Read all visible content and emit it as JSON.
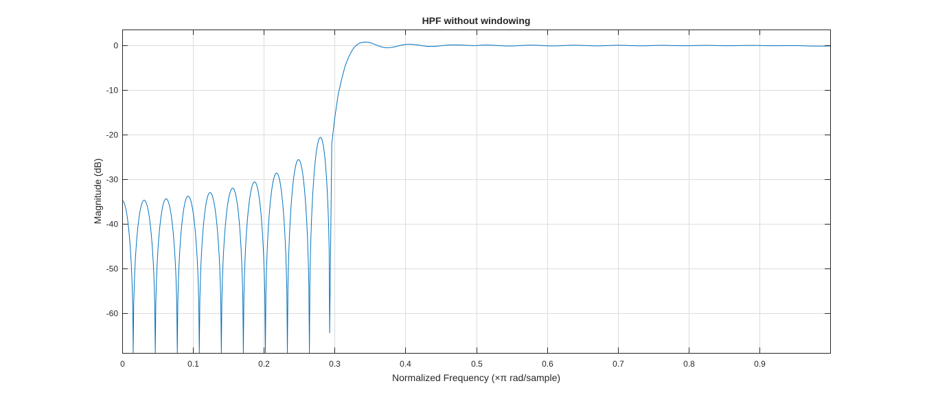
{
  "chart_data": {
    "type": "line",
    "title": "HPF without windowing",
    "xlabel": "Normalized Frequency (×π rad/sample)",
    "ylabel": "Magnitude (dB)",
    "xlim": [
      0,
      1
    ],
    "ylim": [
      -69,
      3.6
    ],
    "xticks": [
      0,
      0.1,
      0.2,
      0.3,
      0.4,
      0.5,
      0.6,
      0.7,
      0.8,
      0.9
    ],
    "xtick_labels": [
      "0",
      "0.1",
      "0.2",
      "0.3",
      "0.4",
      "0.5",
      "0.6",
      "0.7",
      "0.8",
      "0.9"
    ],
    "yticks": [
      0,
      -10,
      -20,
      -30,
      -40,
      -50,
      -60
    ],
    "ytick_labels": [
      "0",
      "-10",
      "-20",
      "-30",
      "-40",
      "-50",
      "-60"
    ],
    "grid": true,
    "series": [
      {
        "color": "#0072bd",
        "stopband_nulls": [
          0.0155,
          0.0467,
          0.0778,
          0.1089,
          0.14,
          0.1711,
          0.2022,
          0.2333,
          0.2644,
          0.293
        ],
        "stopband_lobe_peaks": [
          {
            "x": 0.0,
            "y": -34.8
          },
          {
            "x": 0.031,
            "y": -34.7
          },
          {
            "x": 0.062,
            "y": -34.4
          },
          {
            "x": 0.093,
            "y": -33.8
          },
          {
            "x": 0.124,
            "y": -33.0
          },
          {
            "x": 0.156,
            "y": -32.0
          },
          {
            "x": 0.187,
            "y": -30.6
          },
          {
            "x": 0.218,
            "y": -28.6
          },
          {
            "x": 0.249,
            "y": -25.6
          },
          {
            "x": 0.28,
            "y": -20.6
          }
        ],
        "last_null_depth": -64.5,
        "transition": [
          {
            "x": 0.293,
            "y": -64.5
          },
          {
            "x": 0.296,
            "y": -22.0
          },
          {
            "x": 0.3,
            "y": -16.5
          },
          {
            "x": 0.305,
            "y": -11.0
          },
          {
            "x": 0.31,
            "y": -7.5
          },
          {
            "x": 0.315,
            "y": -4.5
          },
          {
            "x": 0.32,
            "y": -2.5
          },
          {
            "x": 0.325,
            "y": -1.0
          },
          {
            "x": 0.33,
            "y": 0.0
          },
          {
            "x": 0.336,
            "y": 0.6
          },
          {
            "x": 0.343,
            "y": 0.8
          }
        ],
        "passband_ripple": [
          {
            "x": 0.343,
            "y": 0.8
          },
          {
            "x": 0.374,
            "y": -0.5
          },
          {
            "x": 0.405,
            "y": 0.3
          },
          {
            "x": 0.436,
            "y": -0.2
          },
          {
            "x": 0.467,
            "y": 0.15
          },
          {
            "x": 0.5,
            "y": 0.0
          },
          {
            "x": 0.6,
            "y": 0.0
          },
          {
            "x": 0.7,
            "y": 0.0
          },
          {
            "x": 0.8,
            "y": 0.0
          },
          {
            "x": 0.9,
            "y": 0.0
          },
          {
            "x": 1.0,
            "y": -0.1
          }
        ]
      }
    ]
  }
}
